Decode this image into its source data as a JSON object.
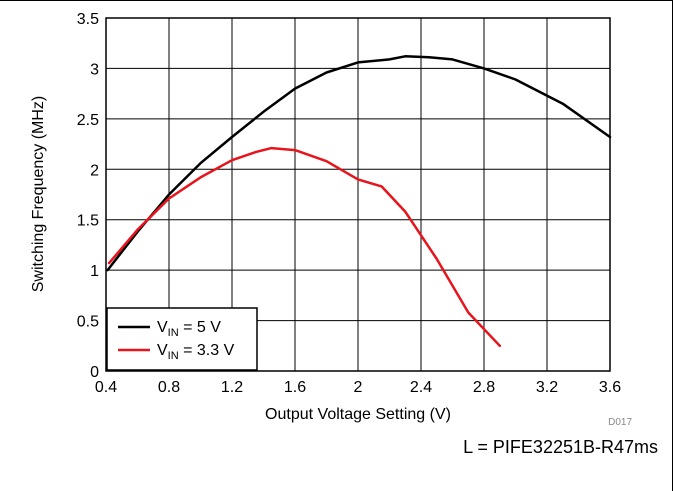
{
  "chart_data": {
    "type": "line",
    "xlabel": "Output Voltage Setting (V)",
    "ylabel": "Switching Frequency (MHz)",
    "xlim": [
      0.4,
      3.6
    ],
    "ylim": [
      0,
      3.5
    ],
    "x_ticks": [
      "0.4",
      "0.8",
      "1.2",
      "1.6",
      "2",
      "2.4",
      "2.8",
      "3.2",
      "3.6"
    ],
    "y_ticks": [
      "0",
      "0.5",
      "1",
      "1.5",
      "2",
      "2.5",
      "3",
      "3.5"
    ],
    "grid": true,
    "legend_position": "bottom-left",
    "colors": {
      "vin5": "#000000",
      "vin33": "#e8141c"
    },
    "series": [
      {
        "name": "VIN = 5 V",
        "label_main": "V",
        "label_sub": "IN",
        "label_rest": " = 5 V",
        "x": [
          0.41,
          0.6,
          0.8,
          1.0,
          1.2,
          1.4,
          1.6,
          1.8,
          2.0,
          2.2,
          2.3,
          2.45,
          2.6,
          2.8,
          3.0,
          3.3,
          3.6
        ],
        "y": [
          1.0,
          1.38,
          1.75,
          2.06,
          2.32,
          2.57,
          2.8,
          2.96,
          3.06,
          3.09,
          3.12,
          3.11,
          3.09,
          3.0,
          2.89,
          2.65,
          2.32
        ]
      },
      {
        "name": "VIN = 3.3 V",
        "label_main": "V",
        "label_sub": "IN",
        "label_rest": " = 3.3 V",
        "x": [
          0.42,
          0.6,
          0.8,
          1.0,
          1.2,
          1.35,
          1.45,
          1.6,
          1.8,
          2.0,
          2.15,
          2.3,
          2.5,
          2.7,
          2.9
        ],
        "y": [
          1.07,
          1.4,
          1.71,
          1.92,
          2.09,
          2.17,
          2.21,
          2.19,
          2.08,
          1.9,
          1.83,
          1.58,
          1.11,
          0.58,
          0.25
        ]
      }
    ],
    "annotations": {
      "figure_id": "D017",
      "inductor_note": "L = PIFE32251B-R47ms"
    }
  }
}
